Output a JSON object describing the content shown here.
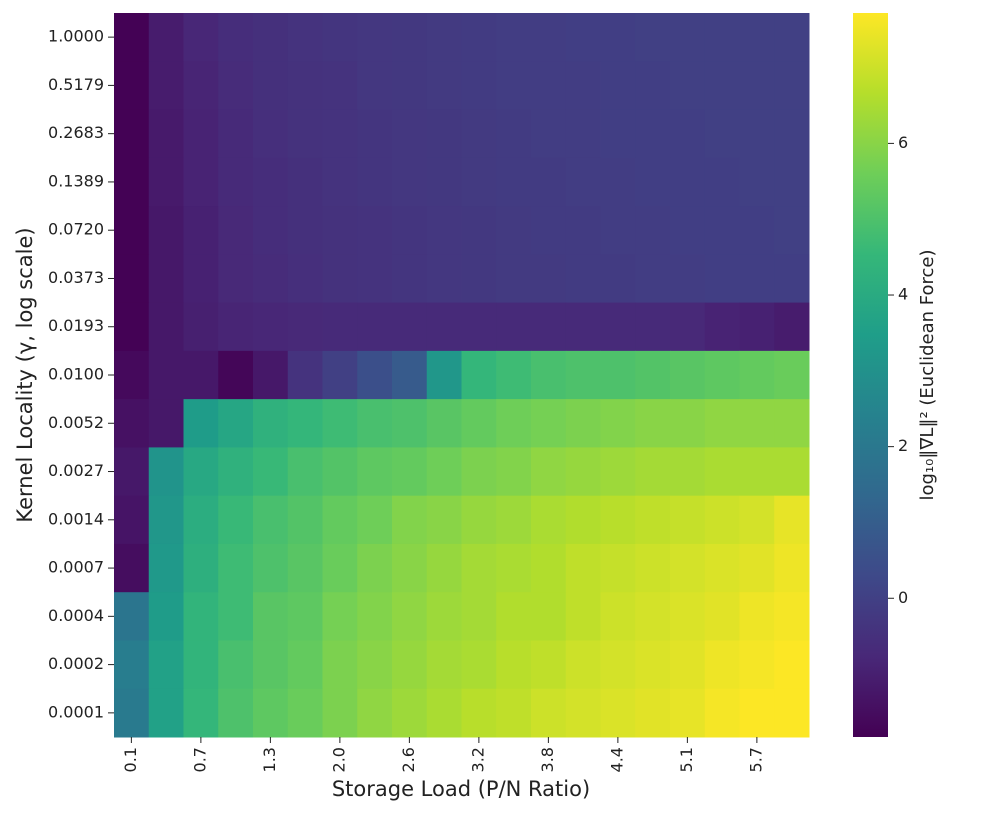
{
  "chart_data": {
    "type": "heatmap",
    "x_label": "Storage Load (P/N Ratio)",
    "y_label": "Kernel Locality (γ, log scale)",
    "colorbar_label": "log₁₀‖∇L‖² (Euclidean Force)",
    "colormap": "viridis",
    "categories": [
      "0.1",
      null,
      "0.7",
      null,
      "1.3",
      null,
      "2.0",
      null,
      "2.6",
      null,
      "3.2",
      null,
      "3.8",
      null,
      "4.4",
      null,
      "5.1",
      null,
      "5.7",
      null
    ],
    "rows": [
      "1.0000",
      "0.5179",
      "0.2683",
      "0.1389",
      "0.0720",
      "0.0373",
      "0.0193",
      "0.0100",
      "0.0052",
      "0.0027",
      "0.0014",
      "0.0007",
      "0.0004",
      "0.0002",
      "0.0001"
    ],
    "values": [
      [
        -1.8,
        -1.1,
        -0.8,
        -0.6,
        -0.5,
        -0.4,
        -0.35,
        -0.3,
        -0.25,
        -0.2,
        -0.15,
        -0.1,
        -0.1,
        -0.05,
        -0.05,
        0,
        0,
        0,
        0,
        0
      ],
      [
        -1.8,
        -1.1,
        -0.85,
        -0.65,
        -0.5,
        -0.45,
        -0.4,
        -0.3,
        -0.25,
        -0.2,
        -0.15,
        -0.1,
        -0.1,
        -0.1,
        -0.05,
        -0.05,
        0,
        0,
        0,
        0
      ],
      [
        -1.8,
        -1.15,
        -0.9,
        -0.7,
        -0.55,
        -0.45,
        -0.4,
        -0.35,
        -0.3,
        -0.25,
        -0.2,
        -0.15,
        -0.1,
        -0.1,
        -0.05,
        -0.05,
        -0.05,
        0,
        0,
        0
      ],
      [
        -1.8,
        -1.15,
        -0.9,
        -0.7,
        -0.6,
        -0.5,
        -0.4,
        -0.35,
        -0.3,
        -0.25,
        -0.2,
        -0.15,
        -0.15,
        -0.1,
        -0.1,
        -0.05,
        -0.05,
        -0.05,
        0,
        0
      ],
      [
        -1.8,
        -1.2,
        -0.95,
        -0.75,
        -0.6,
        -0.5,
        -0.45,
        -0.4,
        -0.35,
        -0.3,
        -0.25,
        -0.2,
        -0.15,
        -0.15,
        -0.1,
        -0.1,
        -0.05,
        -0.05,
        -0.05,
        0
      ],
      [
        -1.8,
        -1.2,
        -0.95,
        -0.75,
        -0.65,
        -0.55,
        -0.45,
        -0.4,
        -0.35,
        -0.3,
        -0.25,
        -0.2,
        -0.2,
        -0.15,
        -0.15,
        -0.1,
        -0.1,
        -0.05,
        -0.05,
        -0.05
      ],
      [
        -1.8,
        -1.2,
        -1.0,
        -0.85,
        -0.8,
        -0.75,
        -0.7,
        -0.7,
        -0.7,
        -0.7,
        -0.7,
        -0.7,
        -0.7,
        -0.7,
        -0.7,
        -0.7,
        -0.75,
        -0.9,
        -0.95,
        -1.1
      ],
      [
        -1.6,
        -1.2,
        -1.2,
        -1.7,
        -1.2,
        -0.4,
        0.0,
        0.5,
        0.9,
        3.2,
        4.5,
        4.7,
        4.9,
        5.0,
        5.0,
        5.1,
        5.2,
        5.3,
        5.4,
        5.5
      ],
      [
        -1.4,
        -1.2,
        3.4,
        3.8,
        4.3,
        4.5,
        4.7,
        4.9,
        5.0,
        5.2,
        5.4,
        5.6,
        5.7,
        5.8,
        5.9,
        6.0,
        6.0,
        6.1,
        6.1,
        6.1
      ],
      [
        -1.2,
        3.1,
        3.9,
        4.3,
        4.6,
        4.9,
        5.1,
        5.3,
        5.4,
        5.6,
        5.8,
        5.9,
        6.1,
        6.2,
        6.3,
        6.4,
        6.4,
        6.5,
        6.5,
        6.5
      ],
      [
        -1.3,
        3.2,
        4.1,
        4.6,
        4.9,
        5.1,
        5.4,
        5.6,
        5.9,
        6.0,
        6.2,
        6.3,
        6.5,
        6.6,
        6.7,
        6.8,
        6.9,
        7.0,
        7.1,
        7.4
      ],
      [
        -1.5,
        3.3,
        4.2,
        4.7,
        5.0,
        5.2,
        5.5,
        5.8,
        6.0,
        6.2,
        6.4,
        6.5,
        6.6,
        6.8,
        6.9,
        7.0,
        7.1,
        7.2,
        7.3,
        7.5
      ],
      [
        1.9,
        3.4,
        4.4,
        4.7,
        5.2,
        5.3,
        5.7,
        5.9,
        6.1,
        6.3,
        6.4,
        6.6,
        6.6,
        6.8,
        7.0,
        7.1,
        7.2,
        7.3,
        7.5,
        7.6
      ],
      [
        2.2,
        3.6,
        4.4,
        4.9,
        5.2,
        5.4,
        5.8,
        6.0,
        6.2,
        6.4,
        6.5,
        6.7,
        6.8,
        7.0,
        7.1,
        7.2,
        7.3,
        7.5,
        7.6,
        7.7
      ],
      [
        2.1,
        3.6,
        4.5,
        5.0,
        5.3,
        5.5,
        5.8,
        6.1,
        6.3,
        6.5,
        6.7,
        6.8,
        7.0,
        7.1,
        7.2,
        7.3,
        7.4,
        7.6,
        7.7,
        7.7
      ]
    ],
    "clim": [
      -1.83,
      7.72
    ],
    "cticks": [
      0,
      2,
      4,
      6
    ]
  }
}
